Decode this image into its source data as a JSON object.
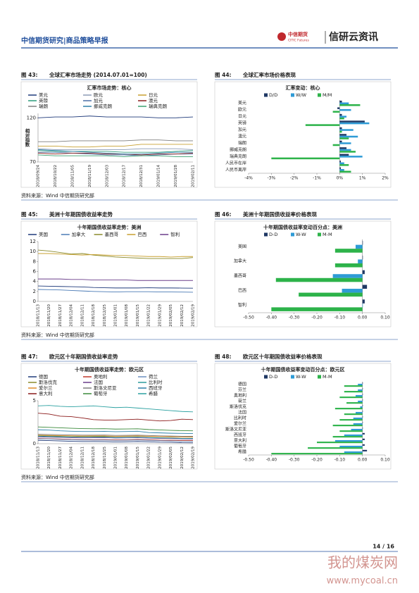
{
  "header": {
    "title": "中信期货研究|商品策略早报",
    "logo_cn": "中信期货",
    "logo_en": "CITIC Futures",
    "brand": "信研云资讯"
  },
  "chart_data": [
    {
      "type": "line",
      "figure": "图 43:",
      "caption": "全球汇率市场走势 (2014.07.01=100)",
      "title": "汇率市场走势：核心",
      "ylabel": "相对指数",
      "categories": [
        "2018/09/24",
        "2018/10/22",
        "2018/11/05",
        "2018/11/19",
        "2018/12/03",
        "2018/12/17",
        "2018/12/31",
        "2019/01/14",
        "2019/01/28",
        "2019/02/11"
      ],
      "ylim": [
        70,
        125
      ],
      "yticks": [
        70,
        120
      ],
      "series": [
        {
          "name": "美元",
          "color": "#1f3a7a",
          "values": [
            120,
            121,
            121,
            122,
            121,
            121,
            121,
            120,
            120,
            121
          ]
        },
        {
          "name": "欧元",
          "color": "#8a9bb5",
          "values": [
            85,
            84,
            84,
            84,
            84,
            84,
            85,
            85,
            85,
            84
          ]
        },
        {
          "name": "日元",
          "color": "#c8a030",
          "values": [
            88,
            88,
            87,
            87,
            88,
            88,
            90,
            90,
            90,
            90
          ]
        },
        {
          "name": "英镑",
          "color": "#2a9a7a",
          "values": [
            83,
            82,
            82,
            82,
            82,
            81,
            81,
            81,
            82,
            83
          ]
        },
        {
          "name": "加元",
          "color": "#4a6fa5",
          "values": [
            81,
            81,
            80,
            79,
            78,
            78,
            77,
            78,
            79,
            79
          ]
        },
        {
          "name": "澳元",
          "color": "#8b1a1a",
          "values": [
            80,
            79,
            80,
            80,
            79,
            79,
            78,
            79,
            79,
            80
          ]
        },
        {
          "name": "瑞朗",
          "color": "#7f7f7f",
          "values": [
            93,
            93,
            94,
            94,
            94,
            94,
            95,
            95,
            94,
            94
          ]
        },
        {
          "name": "挪威克朗",
          "color": "#2e7fa8",
          "values": [
            84,
            83,
            82,
            81,
            80,
            79,
            79,
            80,
            81,
            81
          ]
        },
        {
          "name": "瑞典克朗",
          "color": "#3aa070",
          "values": [
            78,
            77,
            77,
            77,
            77,
            76,
            77,
            77,
            76,
            76
          ]
        }
      ]
    },
    {
      "type": "hbar",
      "figure": "图 44:",
      "caption": "全球汇率市场价格表现",
      "title": "汇率变动：核心",
      "categories": [
        "美元",
        "欧元",
        "日元",
        "英镑",
        "加元",
        "澳元",
        "瑞朗",
        "挪威克朗",
        "瑞典克朗",
        "人民币在岸",
        "人民币离岸"
      ],
      "xlim": [
        -4,
        2
      ],
      "xticks": [
        {
          "value": -4,
          "label": "-4%"
        },
        {
          "value": -3,
          "label": "-3%"
        },
        {
          "value": -2,
          "label": "-2%"
        },
        {
          "value": -1,
          "label": "-1%"
        },
        {
          "value": 0,
          "label": "0%"
        },
        {
          "value": 1,
          "label": "1%"
        },
        {
          "value": 2,
          "label": "2%"
        }
      ],
      "series": [
        {
          "name": "D/D",
          "color": "#1f3864",
          "values": [
            0.1,
            -0.1,
            0.1,
            1.1,
            0.1,
            0.3,
            0.1,
            0.3,
            0.4,
            0.05,
            0.05
          ]
        },
        {
          "name": "W/W",
          "color": "#2e9bd6",
          "values": [
            0.4,
            0.5,
            0.3,
            1.3,
            0.6,
            0.8,
            0.5,
            0.5,
            1.0,
            0.2,
            0.2
          ]
        },
        {
          "name": "M/M",
          "color": "#2db34a",
          "values": [
            0.9,
            -0.3,
            0.2,
            -1.5,
            0.1,
            0.4,
            -0.3,
            0.7,
            -3.0,
            0.4,
            0.5
          ]
        }
      ]
    },
    {
      "type": "line",
      "figure": "图 45:",
      "caption": "美洲十年期国债收益率走势",
      "title": "十年期国债收益率走势：美洲",
      "categories": [
        "2018/11/13",
        "2018/11/20",
        "2018/11/27",
        "2018/12/04",
        "2018/12/11",
        "2018/12/18",
        "2018/12/25",
        "2019/01/01",
        "2019/01/08",
        "2019/01/15",
        "2019/01/22",
        "2019/01/29",
        "2019/02/05",
        "2019/02/12",
        "2019/02/19"
      ],
      "ylim": [
        0,
        12
      ],
      "yticks": [
        0,
        2,
        4,
        6,
        8,
        10,
        12
      ],
      "series": [
        {
          "name": "美国",
          "color": "#1f3a7a",
          "values": [
            3.1,
            3.05,
            3.0,
            2.95,
            2.9,
            2.8,
            2.75,
            2.7,
            2.7,
            2.7,
            2.75,
            2.7,
            2.7,
            2.68,
            2.65
          ]
        },
        {
          "name": "加拿大",
          "color": "#4a7ab5",
          "values": [
            2.4,
            2.35,
            2.3,
            2.2,
            2.1,
            2.0,
            1.95,
            1.9,
            1.95,
            1.95,
            1.95,
            1.9,
            1.9,
            1.88,
            1.85
          ]
        },
        {
          "name": "墨西哥",
          "color": "#8a8a2a",
          "values": [
            10.3,
            10.1,
            9.8,
            9.5,
            9.6,
            9.3,
            9.1,
            8.9,
            8.8,
            8.7,
            8.6,
            8.6,
            8.6,
            8.6,
            8.8
          ]
        },
        {
          "name": "巴西",
          "color": "#c8a030",
          "values": [
            9.6,
            9.6,
            9.5,
            9.4,
            9.3,
            9.4,
            9.3,
            9.2,
            9.2,
            9.1,
            9.0,
            9.0,
            8.9,
            9.0,
            9.0
          ]
        },
        {
          "name": "智利",
          "color": "#6a3d8a",
          "values": [
            4.5,
            4.5,
            4.5,
            4.4,
            4.4,
            4.3,
            4.3,
            4.3,
            4.3,
            4.2,
            4.2,
            4.2,
            4.2,
            4.2,
            4.2
          ]
        }
      ]
    },
    {
      "type": "hbar",
      "figure": "图 46:",
      "caption": "美洲十年期国债收益率价格表现",
      "title": "十年期国债收益率变动百分点：美洲",
      "categories": [
        "美国",
        "加拿大",
        "墨西哥",
        "巴西",
        "智利"
      ],
      "xlim": [
        -0.5,
        0.1
      ],
      "xticks": [
        {
          "value": -0.5,
          "label": "-0.50"
        },
        {
          "value": -0.4,
          "label": "-0.40"
        },
        {
          "value": -0.3,
          "label": "-0.30"
        },
        {
          "value": -0.2,
          "label": "-0.20"
        },
        {
          "value": -0.1,
          "label": "-0.10"
        },
        {
          "value": 0,
          "label": "0.00"
        },
        {
          "value": 0.1,
          "label": "0.10"
        }
      ],
      "series": [
        {
          "name": "D-D",
          "color": "#1f3864",
          "values": [
            0.0,
            0.0,
            0.01,
            0.02,
            0.01
          ]
        },
        {
          "name": "W-W",
          "color": "#2e9bd6",
          "values": [
            -0.03,
            -0.02,
            -0.13,
            -0.09,
            0.0
          ]
        },
        {
          "name": "M-M",
          "color": "#2db34a",
          "values": [
            -0.12,
            -0.12,
            -0.38,
            -0.28,
            -0.4
          ]
        }
      ]
    },
    {
      "type": "line",
      "figure": "图 47:",
      "caption": "欧元区十年期国债收益率走势",
      "title": "十年期国债收益率走势：欧元区",
      "categories": [
        "2018/11/13",
        "2018/11/20",
        "2018/11/27",
        "2018/12/04",
        "2018/12/11",
        "2018/12/18",
        "2018/12/25",
        "2019/01/01",
        "2019/01/08",
        "2019/01/15",
        "2019/01/22",
        "2019/01/29",
        "2019/02/05",
        "2019/02/12",
        "2019/02/19"
      ],
      "ylim": [
        0,
        5
      ],
      "yticks": [
        0,
        5
      ],
      "series": [
        {
          "name": "德国",
          "color": "#1f3a7a",
          "values": [
            0.4,
            0.36,
            0.32,
            0.28,
            0.25,
            0.25,
            0.24,
            0.2,
            0.22,
            0.25,
            0.22,
            0.18,
            0.17,
            0.12,
            0.11
          ]
        },
        {
          "name": "奥地利",
          "color": "#c0392b",
          "values": [
            0.62,
            0.58,
            0.55,
            0.5,
            0.48,
            0.47,
            0.48,
            0.44,
            0.46,
            0.5,
            0.45,
            0.41,
            0.4,
            0.36,
            0.36
          ]
        },
        {
          "name": "荷兰",
          "color": "#6a8fbf",
          "values": [
            0.58,
            0.55,
            0.5,
            0.46,
            0.43,
            0.42,
            0.42,
            0.38,
            0.4,
            0.43,
            0.39,
            0.35,
            0.33,
            0.29,
            0.28
          ]
        },
        {
          "name": "斯洛伐克",
          "color": "#8a8a2a",
          "values": [
            0.95,
            0.92,
            0.9,
            0.88,
            0.85,
            0.86,
            0.86,
            0.84,
            0.86,
            0.88,
            0.85,
            0.82,
            0.8,
            0.77,
            0.76
          ]
        },
        {
          "name": "法国",
          "color": "#6a3d8a",
          "values": [
            0.8,
            0.76,
            0.74,
            0.7,
            0.68,
            0.7,
            0.71,
            0.66,
            0.68,
            0.7,
            0.65,
            0.62,
            0.6,
            0.56,
            0.55
          ]
        },
        {
          "name": "比利时",
          "color": "#2a9a9a",
          "values": [
            0.88,
            0.84,
            0.81,
            0.78,
            0.76,
            0.77,
            0.78,
            0.72,
            0.74,
            0.76,
            0.72,
            0.68,
            0.66,
            0.62,
            0.62
          ]
        },
        {
          "name": "爱尔兰",
          "color": "#e08a2a",
          "values": [
            1.0,
            0.97,
            0.95,
            0.92,
            0.9,
            0.91,
            0.91,
            0.87,
            0.89,
            0.91,
            0.87,
            0.83,
            0.81,
            0.78,
            0.77
          ]
        },
        {
          "name": "斯洛文尼亚",
          "color": "#7f7f7f",
          "values": [
            1.1,
            1.07,
            1.05,
            1.02,
            1.0,
            1.0,
            1.01,
            0.97,
            0.98,
            1.0,
            0.96,
            0.92,
            0.9,
            0.87,
            0.86
          ]
        },
        {
          "name": "西班牙",
          "color": "#2e7fa8",
          "values": [
            1.62,
            1.58,
            1.5,
            1.45,
            1.42,
            1.42,
            1.44,
            1.4,
            1.42,
            1.45,
            1.3,
            1.26,
            1.22,
            1.2,
            1.18
          ]
        },
        {
          "name": "意大利",
          "color": "#8b1a1a",
          "values": [
            3.55,
            3.45,
            3.2,
            3.15,
            3.0,
            2.8,
            2.75,
            2.75,
            2.8,
            2.85,
            2.75,
            2.65,
            2.7,
            2.85,
            2.8
          ]
        },
        {
          "name": "葡萄牙",
          "color": "#3a8a3a",
          "values": [
            1.95,
            1.9,
            1.85,
            1.8,
            1.76,
            1.74,
            1.75,
            1.7,
            1.72,
            1.74,
            1.65,
            1.6,
            1.55,
            1.52,
            1.5
          ]
        },
        {
          "name": "希腊",
          "color": "#2aa0a0",
          "values": [
            4.4,
            4.45,
            4.35,
            4.3,
            4.35,
            4.4,
            4.3,
            4.2,
            4.25,
            4.15,
            4.05,
            3.95,
            3.85,
            3.75,
            3.7
          ]
        }
      ]
    },
    {
      "type": "hbar",
      "figure": "图 48:",
      "caption": "欧元区十年期国债收益率价格表现",
      "title": "十年期国债收益率变动百分点：欧元区",
      "categories": [
        "德国",
        "芬兰",
        "奥地利",
        "荷兰",
        "斯洛伐克",
        "法国",
        "比利时",
        "爱尔兰",
        "斯洛文尼亚",
        "西班牙",
        "意大利",
        "葡萄牙",
        "希腊"
      ],
      "xlim": [
        -0.5,
        0.1
      ],
      "xticks": [
        {
          "value": -0.5,
          "label": "-0.50"
        },
        {
          "value": -0.4,
          "label": "-0.40"
        },
        {
          "value": -0.3,
          "label": "-0.30"
        },
        {
          "value": -0.2,
          "label": "-0.20"
        },
        {
          "value": -0.1,
          "label": "-0.10"
        },
        {
          "value": 0,
          "label": "0.00"
        },
        {
          "value": 0.1,
          "label": "0.10"
        }
      ],
      "series": [
        {
          "name": "D-D",
          "color": "#1f3864",
          "values": [
            0,
            0,
            0,
            0,
            0,
            0,
            0,
            0,
            0,
            0.01,
            0.01,
            0.01,
            0.02
          ]
        },
        {
          "name": "W-W",
          "color": "#2e9bd6",
          "values": [
            -0.02,
            -0.02,
            -0.03,
            -0.02,
            -0.01,
            -0.03,
            -0.04,
            -0.04,
            -0.05,
            -0.08,
            -0.12,
            -0.1,
            -0.08
          ]
        },
        {
          "name": "M-M",
          "color": "#2db34a",
          "values": [
            -0.08,
            -0.08,
            -0.1,
            -0.07,
            -0.12,
            -0.08,
            -0.1,
            -0.13,
            -0.1,
            -0.13,
            -0.2,
            -0.24,
            -0.4
          ]
        }
      ]
    }
  ],
  "sources": [
    "资料来源：Wind  中信期货研究部",
    "资料来源：Wind  中信期货研究部",
    "资料来源：Wind  中信期货研究部"
  ],
  "footer": {
    "page": "14 / 16"
  },
  "watermark": {
    "cn": "我的煤炭网",
    "url": "www.mycoal.cn"
  }
}
